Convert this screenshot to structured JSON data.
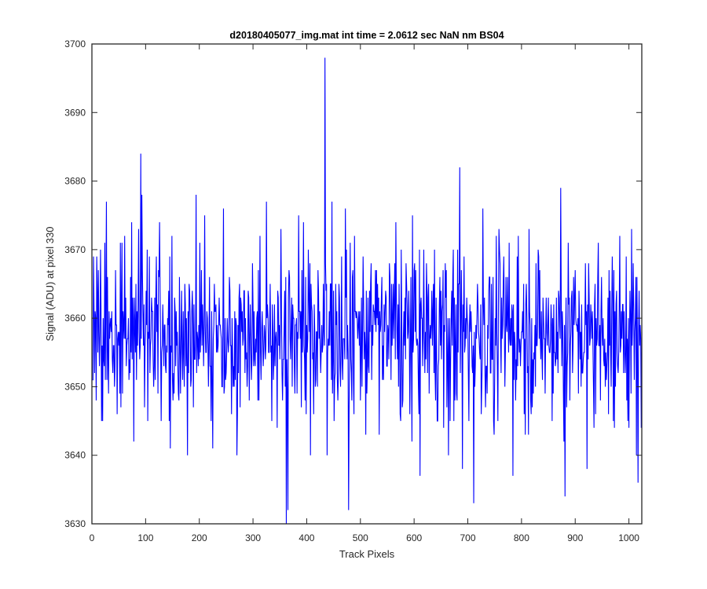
{
  "chart_data": {
    "type": "line",
    "title": "d20180405077_img.mat int time = 2.0612 sec  NaN nm BS04",
    "xlabel": "Track Pixels",
    "ylabel": "Signal (ADU) at pixel 330",
    "xlim": [
      0,
      1024
    ],
    "ylim": [
      3630,
      3700
    ],
    "x_ticks": [
      "0",
      "100",
      "200",
      "300",
      "400",
      "500",
      "600",
      "700",
      "800",
      "900",
      "1000"
    ],
    "y_ticks": [
      "3630",
      "3640",
      "3650",
      "3660",
      "3670",
      "3680",
      "3690",
      "3700"
    ],
    "grid": false,
    "legend": "none",
    "line_color": "#0000ff",
    "series": [
      {
        "x_start": 1,
        "x_step": 1,
        "count": 1024,
        "typical_mean": 3658,
        "typical_range": [
          3640,
          3677
        ],
        "values_note_points": [
          [
            1,
            3651
          ],
          [
            8,
            3648
          ],
          [
            12,
            3667
          ],
          [
            20,
            3645
          ],
          [
            27,
            3677
          ],
          [
            35,
            3660
          ],
          [
            47,
            3646
          ],
          [
            56,
            3671
          ],
          [
            78,
            3642
          ],
          [
            86,
            3662
          ],
          [
            91,
            3684
          ],
          [
            93,
            3678
          ],
          [
            104,
            3645
          ],
          [
            126,
            3674
          ],
          [
            146,
            3641
          ],
          [
            167,
            3664
          ],
          [
            178,
            3640
          ],
          [
            194,
            3678
          ],
          [
            210,
            3675
          ],
          [
            225,
            3641
          ],
          [
            245,
            3676
          ],
          [
            268,
            3660
          ],
          [
            270,
            3640
          ],
          [
            299,
            3668
          ],
          [
            309,
            3648
          ],
          [
            335,
            3645
          ],
          [
            352,
            3673
          ],
          [
            362,
            3630
          ],
          [
            365,
            3632
          ],
          [
            385,
            3675
          ],
          [
            397,
            3648
          ],
          [
            422,
            3664
          ],
          [
            434,
            3698
          ],
          [
            438,
            3640
          ],
          [
            447,
            3677
          ],
          [
            472,
            3676
          ],
          [
            478,
            3632
          ],
          [
            503,
            3650
          ],
          [
            530,
            3667
          ],
          [
            566,
            3674
          ],
          [
            578,
            3647
          ],
          [
            611,
            3637
          ],
          [
            626,
            3663
          ],
          [
            664,
            3640
          ],
          [
            685,
            3682
          ],
          [
            690,
            3638
          ],
          [
            711,
            3633
          ],
          [
            728,
            3676
          ],
          [
            749,
            3643
          ],
          [
            777,
            3671
          ],
          [
            784,
            3637
          ],
          [
            792,
            3669
          ],
          [
            843,
            3657
          ],
          [
            873,
            3679
          ],
          [
            881,
            3634
          ],
          [
            893,
            3663
          ],
          [
            922,
            3638
          ],
          [
            955,
            3657
          ],
          [
            971,
            3645
          ],
          [
            995,
            3669
          ],
          [
            1014,
            3640
          ],
          [
            1017,
            3636
          ],
          [
            1022,
            3657
          ]
        ]
      }
    ]
  }
}
